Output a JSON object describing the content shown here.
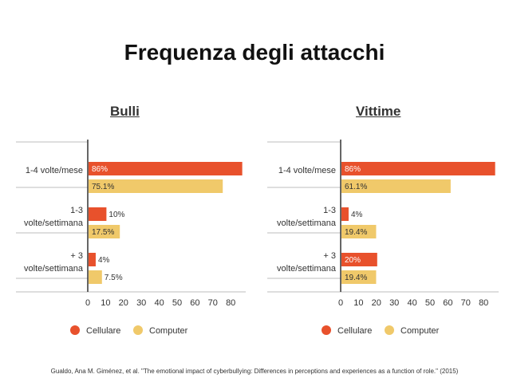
{
  "slide": {
    "title": "Frequenza degli attacchi",
    "citation": "Gualdo, Ana M. Giménez, et al. \"The emotional impact of cyberbullying: Differences in perceptions and experiences as a function of role.\" (2015)"
  },
  "colors": {
    "cellulare": "#e8512c",
    "computer": "#f0c96a"
  },
  "chart_data": [
    {
      "type": "bar",
      "orientation": "horizontal",
      "title": "Bulli",
      "categories": [
        [
          "1-4 volte/mese"
        ],
        [
          "1-3",
          "volte/settimana"
        ],
        [
          "+ 3",
          "volte/settimana"
        ]
      ],
      "series": [
        {
          "name": "Cellulare",
          "values": [
            86,
            10,
            4
          ],
          "labels": [
            "86%",
            "10%",
            "4%"
          ]
        },
        {
          "name": "Computer",
          "values": [
            75.1,
            17.5,
            7.5
          ],
          "labels": [
            "75.1%",
            "17.5%",
            "7.5%"
          ]
        }
      ],
      "xticks": [
        "0",
        "10",
        "20",
        "30",
        "40",
        "50",
        "60",
        "70",
        "80"
      ],
      "xlim": [
        0,
        86
      ]
    },
    {
      "type": "bar",
      "orientation": "horizontal",
      "title": "Vittime",
      "categories": [
        [
          "1-4 volte/mese"
        ],
        [
          "1-3",
          "volte/settimana"
        ],
        [
          "+ 3",
          "volte/settimana"
        ]
      ],
      "series": [
        {
          "name": "Cellulare",
          "values": [
            86,
            4,
            20
          ],
          "labels": [
            "86%",
            "4%",
            "20%"
          ]
        },
        {
          "name": "Computer",
          "values": [
            61.1,
            19.4,
            19.4
          ],
          "labels": [
            "61.1%",
            "19.4%",
            "19.4%"
          ]
        }
      ],
      "xticks": [
        "0",
        "10",
        "20",
        "30",
        "40",
        "50",
        "60",
        "70",
        "80"
      ],
      "xlim": [
        0,
        86
      ]
    }
  ]
}
